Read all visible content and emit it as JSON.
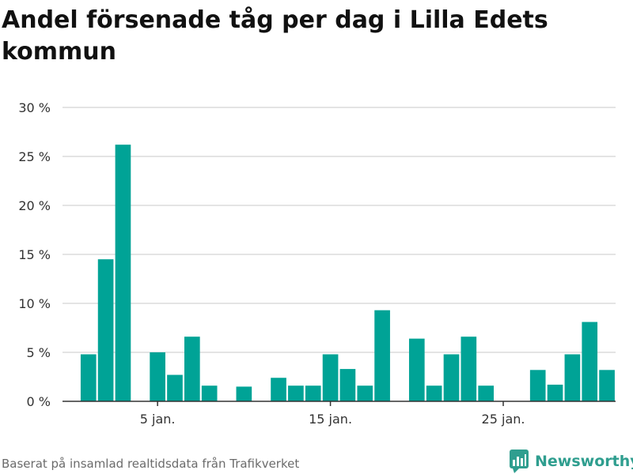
{
  "title": "Andel försenade tåg per dag i Lilla Edets kommun",
  "footer": {
    "source": "Baserat på insamlad realtidsdata från Trafikverket",
    "brand": "Newsworthy"
  },
  "colors": {
    "bar": "#00a396",
    "grid": "#dcdcdc",
    "axis": "#333333",
    "brand": "#2f9e8f"
  },
  "chart_data": {
    "type": "bar",
    "title": "Andel försenade tåg per dag i Lilla Edets kommun",
    "xlabel": "",
    "ylabel": "",
    "ylim": [
      0,
      30
    ],
    "y_ticks": [
      0,
      5,
      10,
      15,
      20,
      25,
      30
    ],
    "y_tick_labels": [
      "0 %",
      "5 %",
      "10 %",
      "15 %",
      "20 %",
      "25 %",
      "30 %"
    ],
    "x_range": [
      -0.5,
      31.5
    ],
    "x_ticks": [
      5,
      15,
      25
    ],
    "x_tick_labels": [
      "5 jan.",
      "15 jan.",
      "25 jan."
    ],
    "grid": true,
    "series": [
      {
        "x": [
          1,
          2,
          3,
          4,
          5,
          6,
          7,
          8,
          9,
          10,
          11,
          12,
          13,
          14,
          15,
          16,
          17,
          18,
          19,
          20,
          21,
          22,
          23,
          24,
          25,
          26,
          27,
          28,
          29,
          30,
          31
        ],
        "values": [
          4.8,
          14.5,
          26.2,
          0,
          5.0,
          2.7,
          6.6,
          1.6,
          0,
          1.5,
          0,
          2.4,
          1.6,
          1.6,
          4.8,
          3.3,
          1.6,
          9.3,
          0,
          6.4,
          1.6,
          4.8,
          6.6,
          1.6,
          0,
          0,
          3.2,
          1.7,
          4.8,
          8.1,
          3.2
        ]
      }
    ]
  }
}
